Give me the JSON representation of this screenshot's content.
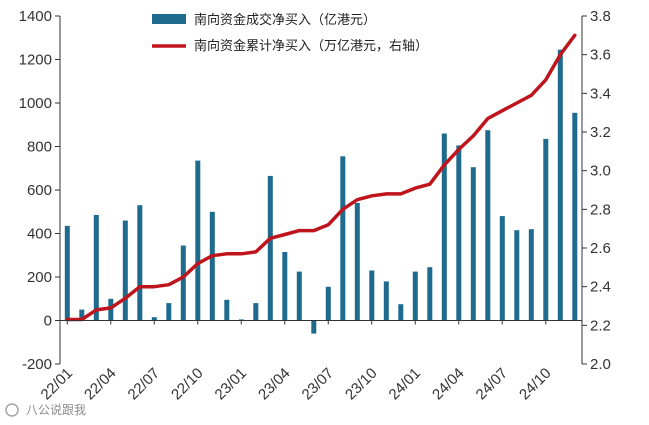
{
  "chart_data": {
    "type": "bar+line",
    "categories": [
      "22/01",
      "22/02",
      "22/03",
      "22/04",
      "22/05",
      "22/06",
      "22/07",
      "22/08",
      "22/09",
      "22/10",
      "22/11",
      "22/12",
      "23/01",
      "23/02",
      "23/03",
      "23/04",
      "23/05",
      "23/06",
      "23/07",
      "23/08",
      "23/09",
      "23/10",
      "23/11",
      "23/12",
      "24/01",
      "24/02",
      "24/03",
      "24/04",
      "24/05",
      "24/06",
      "24/07",
      "24/08",
      "24/09",
      "24/10",
      "24/11",
      "24/12"
    ],
    "x_tick_labels": [
      "22/01",
      "22/04",
      "22/07",
      "22/10",
      "23/01",
      "23/04",
      "23/07",
      "23/10",
      "24/01",
      "24/04",
      "24/07",
      "24/10"
    ],
    "series": [
      {
        "name": "南向资金成交净买入（亿港元）",
        "type": "bar",
        "axis": "left",
        "color": "#1f6b8e",
        "values": [
          435,
          50,
          485,
          100,
          460,
          530,
          15,
          80,
          345,
          735,
          500,
          95,
          5,
          80,
          665,
          315,
          225,
          -60,
          155,
          755,
          540,
          230,
          180,
          75,
          225,
          245,
          860,
          805,
          705,
          875,
          480,
          415,
          420,
          835,
          1245,
          955
        ]
      },
      {
        "name": "南向资金累计净买入（万亿港元，右轴）",
        "type": "line",
        "axis": "right",
        "color": "#c0141c",
        "values": [
          2.23,
          2.23,
          2.28,
          2.29,
          2.34,
          2.4,
          2.4,
          2.41,
          2.45,
          2.52,
          2.56,
          2.57,
          2.57,
          2.58,
          2.65,
          2.67,
          2.69,
          2.69,
          2.72,
          2.8,
          2.85,
          2.87,
          2.88,
          2.88,
          2.91,
          2.93,
          3.03,
          3.11,
          3.18,
          3.27,
          3.31,
          3.35,
          3.39,
          3.47,
          3.6,
          3.7
        ]
      }
    ],
    "y_left": {
      "ylim": [
        -200,
        1400
      ],
      "ticks": [
        -200,
        0,
        200,
        400,
        600,
        800,
        1000,
        1200,
        1400
      ]
    },
    "y_right": {
      "ylim": [
        2.0,
        3.8
      ],
      "ticks": [
        "2.0",
        "2.2",
        "2.4",
        "2.6",
        "2.8",
        "3.0",
        "3.2",
        "3.4",
        "3.6",
        "3.8"
      ]
    },
    "legend_position": "top",
    "grid": false
  },
  "legend": {
    "bar_label": "南向资金成交净买入（亿港元）",
    "line_label": "南向资金累计净买入（万亿港元，右轴）"
  },
  "watermark": {
    "logo_text": "八公说跟我"
  }
}
